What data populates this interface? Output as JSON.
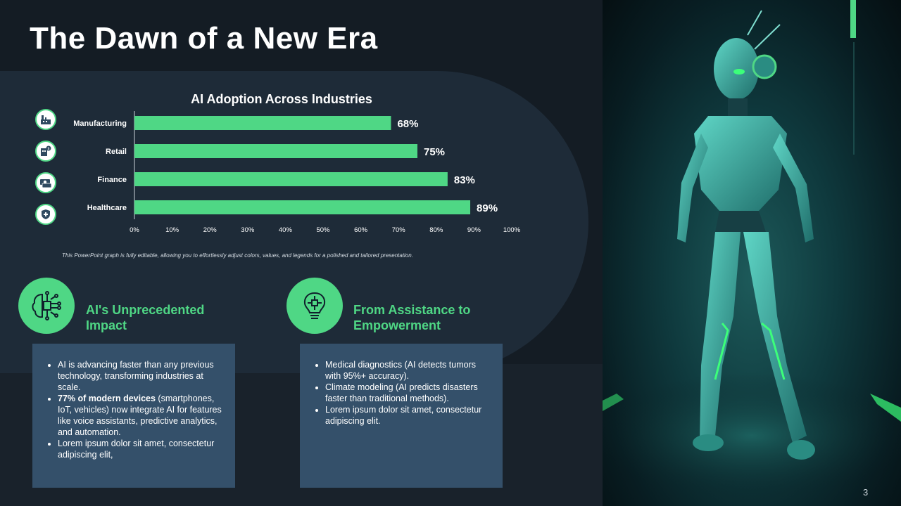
{
  "slide": {
    "title": "The Dawn of a New Era",
    "page_number": "3",
    "accent_color": "#4fd785"
  },
  "chart_data": {
    "type": "bar",
    "orientation": "horizontal",
    "title": "AI Adoption Across Industries",
    "categories": [
      "Manufacturing",
      "Retail",
      "Finance",
      "Healthcare"
    ],
    "values": [
      68,
      75,
      83,
      89
    ],
    "value_labels": [
      "68%",
      "75%",
      "83%",
      "89%"
    ],
    "xlim": [
      0,
      100
    ],
    "x_ticks": [
      "0%",
      "10%",
      "20%",
      "30%",
      "40%",
      "50%",
      "60%",
      "70%",
      "80%",
      "90%",
      "100%"
    ],
    "bar_color": "#4fd785",
    "grid": false,
    "category_icons": [
      "factory-icon",
      "retail-store-icon",
      "finance-money-icon",
      "healthcare-shield-icon"
    ]
  },
  "chart_note": "This PowerPoint graph is fully editable, allowing you to effortlessly adjust colors, values, and legends for a polished and tailored presentation.",
  "features": [
    {
      "icon": "circuit-brain-icon",
      "title_line1": "AI's Unprecedented",
      "title_line2": "Impact",
      "b1": "AI is advancing faster than any previous technology, transforming industries at scale.",
      "b2_bold": "77% of modern devices",
      "b2_rest": " (smartphones, IoT, vehicles) now integrate AI for features like voice assistants, predictive analytics, and automation.",
      "b3": "Lorem ipsum dolor sit amet, consectetur adipiscing elit,"
    },
    {
      "icon": "brain-lightbulb-icon",
      "title_line1": "From Assistance to",
      "title_line2": "Empowerment",
      "b1": "Medical diagnostics (AI detects tumors with 95%+ accuracy).",
      "b2": "Climate modeling (AI predicts disasters faster than traditional methods).",
      "b3": "Lorem ipsum dolor sit amet, consectetur adipiscing elit."
    }
  ],
  "image": {
    "subject": "humanoid-robot-image"
  }
}
